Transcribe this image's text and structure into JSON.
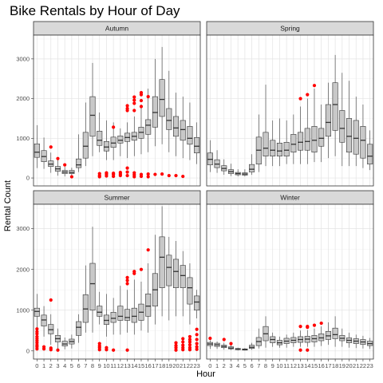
{
  "chart_data": {
    "type": "boxplot",
    "title": "Bike Rentals by Hour of Day",
    "xlabel": "Hour",
    "ylabel": "Rental Count",
    "ylim": [
      -200,
      3600
    ],
    "yticks": [
      0,
      1000,
      2000,
      3000
    ],
    "hours": [
      "0",
      "1",
      "2",
      "3",
      "4",
      "5",
      "6",
      "7",
      "8",
      "9",
      "10",
      "11",
      "12",
      "13",
      "14",
      "15",
      "16",
      "17",
      "18",
      "19",
      "20",
      "21",
      "22",
      "23"
    ],
    "outlier_color": "#ff0000",
    "box_fill": "#c8c8c8",
    "panels": [
      {
        "name": "Autumn",
        "boxes": [
          [
            250,
            520,
            650,
            860,
            1330
          ],
          [
            230,
            410,
            540,
            690,
            1020
          ],
          [
            130,
            290,
            350,
            430,
            640
          ],
          [
            60,
            170,
            230,
            290,
            450
          ],
          [
            40,
            110,
            150,
            190,
            280
          ],
          [
            60,
            110,
            140,
            190,
            260
          ],
          [
            150,
            260,
            330,
            480,
            1100
          ],
          [
            300,
            500,
            800,
            1150,
            1900
          ],
          [
            550,
            1050,
            1580,
            2050,
            2900
          ],
          [
            650,
            820,
            950,
            1180,
            1650
          ],
          [
            450,
            680,
            780,
            920,
            1450
          ],
          [
            450,
            770,
            880,
            1030,
            1400
          ],
          [
            550,
            880,
            950,
            1060,
            1250
          ],
          [
            500,
            920,
            1020,
            1130,
            1400
          ],
          [
            550,
            950,
            1050,
            1150,
            1550
          ],
          [
            600,
            1000,
            1150,
            1280,
            1850
          ],
          [
            650,
            1100,
            1330,
            1470,
            2250
          ],
          [
            800,
            1280,
            1650,
            2050,
            3000
          ],
          [
            850,
            1550,
            1980,
            2480,
            3300
          ],
          [
            650,
            1220,
            1450,
            1750,
            2700
          ],
          [
            550,
            1050,
            1260,
            1550,
            2150
          ],
          [
            500,
            950,
            1220,
            1450,
            2050
          ],
          [
            450,
            850,
            1000,
            1300,
            1900
          ],
          [
            350,
            630,
            800,
            1020,
            1400
          ]
        ],
        "outliers": [
          [
            2,
            780
          ],
          [
            3,
            490
          ],
          [
            4,
            330
          ],
          [
            5,
            30
          ],
          [
            9,
            30
          ],
          [
            9,
            60
          ],
          [
            9,
            110
          ],
          [
            10,
            50
          ],
          [
            10,
            100
          ],
          [
            10,
            130
          ],
          [
            11,
            40
          ],
          [
            11,
            90
          ],
          [
            11,
            120
          ],
          [
            11,
            1280
          ],
          [
            12,
            60
          ],
          [
            12,
            100
          ],
          [
            12,
            140
          ],
          [
            13,
            1820
          ],
          [
            13,
            1750
          ],
          [
            13,
            1700
          ],
          [
            13,
            60
          ],
          [
            13,
            150
          ],
          [
            13,
            250
          ],
          [
            14,
            1880
          ],
          [
            14,
            1960
          ],
          [
            14,
            2040
          ],
          [
            14,
            1700
          ],
          [
            14,
            30
          ],
          [
            14,
            80
          ],
          [
            14,
            130
          ],
          [
            15,
            2150
          ],
          [
            15,
            2100
          ],
          [
            15,
            1950
          ],
          [
            15,
            1800
          ],
          [
            15,
            40
          ],
          [
            15,
            90
          ],
          [
            16,
            2050
          ],
          [
            16,
            100
          ],
          [
            16,
            30
          ],
          [
            17,
            90
          ],
          [
            18,
            100
          ],
          [
            19,
            60
          ],
          [
            20,
            60
          ],
          [
            21,
            40
          ]
        ]
      },
      {
        "name": "Spring",
        "boxes": [
          [
            150,
            330,
            470,
            630,
            950
          ],
          [
            130,
            260,
            350,
            460,
            700
          ],
          [
            80,
            180,
            240,
            310,
            470
          ],
          [
            50,
            110,
            160,
            210,
            360
          ],
          [
            40,
            80,
            110,
            140,
            220
          ],
          [
            40,
            70,
            100,
            130,
            220
          ],
          [
            80,
            150,
            220,
            340,
            600
          ],
          [
            150,
            350,
            700,
            1030,
            1600
          ],
          [
            300,
            550,
            750,
            1150,
            2350
          ],
          [
            300,
            550,
            700,
            950,
            1450
          ],
          [
            300,
            550,
            680,
            880,
            1500
          ],
          [
            350,
            550,
            700,
            900,
            1450
          ],
          [
            350,
            650,
            850,
            1100,
            1600
          ],
          [
            350,
            700,
            900,
            1150,
            1800
          ],
          [
            350,
            700,
            920,
            1250,
            2000
          ],
          [
            400,
            650,
            950,
            1300,
            2250
          ],
          [
            400,
            800,
            1000,
            1250,
            1850
          ],
          [
            500,
            1050,
            1400,
            1850,
            2400
          ],
          [
            550,
            1200,
            1850,
            2400,
            3100
          ],
          [
            300,
            900,
            1250,
            1700,
            2650
          ],
          [
            300,
            650,
            1050,
            1500,
            2450
          ],
          [
            300,
            600,
            1000,
            1450,
            2050
          ],
          [
            250,
            500,
            950,
            1300,
            1850
          ],
          [
            200,
            350,
            550,
            850,
            1200
          ]
        ],
        "outliers": [
          [
            13,
            2000
          ],
          [
            14,
            2100
          ],
          [
            15,
            2330
          ]
        ]
      },
      {
        "name": "Summer",
        "boxes": [
          [
            500,
            850,
            970,
            1050,
            1400
          ],
          [
            350,
            610,
            760,
            880,
            1100
          ],
          [
            150,
            420,
            520,
            650,
            900
          ],
          [
            50,
            220,
            300,
            380,
            550
          ],
          [
            40,
            120,
            170,
            240,
            330
          ],
          [
            60,
            170,
            230,
            290,
            400
          ],
          [
            200,
            380,
            580,
            720,
            900
          ],
          [
            450,
            700,
            1030,
            1380,
            2100
          ],
          [
            450,
            1000,
            1650,
            2150,
            3050
          ],
          [
            650,
            850,
            950,
            1100,
            1450
          ],
          [
            350,
            650,
            750,
            880,
            1400
          ],
          [
            400,
            700,
            800,
            950,
            1300
          ],
          [
            400,
            750,
            850,
            1100,
            1600
          ],
          [
            450,
            750,
            820,
            1020,
            1500
          ],
          [
            400,
            700,
            850,
            1050,
            1750
          ],
          [
            500,
            750,
            950,
            1150,
            1700
          ],
          [
            450,
            850,
            1100,
            1400,
            2150
          ],
          [
            650,
            1100,
            1500,
            1900,
            2850
          ],
          [
            850,
            1550,
            2300,
            2800,
            3550
          ],
          [
            750,
            1600,
            2050,
            2350,
            2800
          ],
          [
            850,
            1550,
            1950,
            2250,
            2700
          ],
          [
            850,
            1550,
            1850,
            2100,
            2450
          ],
          [
            650,
            1150,
            1550,
            1800,
            2150
          ],
          [
            800,
            1000,
            1200,
            1350,
            1500
          ]
        ],
        "outliers": [
          [
            0,
            50
          ],
          [
            0,
            100
          ],
          [
            0,
            140
          ],
          [
            0,
            200
          ],
          [
            0,
            250
          ],
          [
            0,
            300
          ],
          [
            0,
            350
          ],
          [
            0,
            420
          ],
          [
            0,
            470
          ],
          [
            0,
            540
          ],
          [
            1,
            50
          ],
          [
            1,
            100
          ],
          [
            2,
            1250
          ],
          [
            2,
            30
          ],
          [
            2,
            70
          ],
          [
            3,
            20
          ],
          [
            9,
            30
          ],
          [
            9,
            80
          ],
          [
            9,
            120
          ],
          [
            9,
            180
          ],
          [
            10,
            30
          ],
          [
            10,
            80
          ],
          [
            11,
            20
          ],
          [
            13,
            1650
          ],
          [
            13,
            1730
          ],
          [
            13,
            1800
          ],
          [
            13,
            20
          ],
          [
            14,
            1900
          ],
          [
            14,
            1950
          ],
          [
            15,
            2000
          ],
          [
            16,
            2480
          ],
          [
            20,
            20
          ],
          [
            20,
            80
          ],
          [
            20,
            130
          ],
          [
            20,
            200
          ],
          [
            21,
            30
          ],
          [
            21,
            80
          ],
          [
            21,
            140
          ],
          [
            21,
            220
          ],
          [
            21,
            300
          ],
          [
            22,
            30
          ],
          [
            22,
            80
          ],
          [
            22,
            150
          ],
          [
            22,
            220
          ],
          [
            22,
            280
          ],
          [
            22,
            350
          ],
          [
            23,
            40
          ],
          [
            23,
            100
          ],
          [
            23,
            180
          ],
          [
            23,
            280
          ],
          [
            23,
            400
          ],
          [
            23,
            530
          ]
        ]
      },
      {
        "name": "Winter",
        "boxes": [
          [
            50,
            130,
            170,
            210,
            260
          ],
          [
            50,
            110,
            150,
            190,
            230
          ],
          [
            30,
            80,
            110,
            140,
            200
          ],
          [
            20,
            50,
            70,
            100,
            150
          ],
          [
            10,
            30,
            40,
            60,
            80
          ],
          [
            10,
            20,
            30,
            50,
            70
          ],
          [
            30,
            60,
            90,
            140,
            200
          ],
          [
            60,
            130,
            230,
            330,
            550
          ],
          [
            80,
            250,
            420,
            600,
            850
          ],
          [
            100,
            200,
            280,
            350,
            450
          ],
          [
            80,
            150,
            200,
            260,
            350
          ],
          [
            80,
            180,
            240,
            310,
            400
          ],
          [
            100,
            200,
            260,
            330,
            450
          ],
          [
            100,
            210,
            280,
            350,
            500
          ],
          [
            100,
            210,
            290,
            360,
            510
          ],
          [
            100,
            220,
            300,
            380,
            550
          ],
          [
            120,
            250,
            320,
            420,
            600
          ],
          [
            150,
            280,
            370,
            480,
            700
          ],
          [
            100,
            300,
            400,
            560,
            850
          ],
          [
            100,
            250,
            310,
            380,
            550
          ],
          [
            80,
            200,
            260,
            320,
            450
          ],
          [
            70,
            180,
            240,
            300,
            400
          ],
          [
            60,
            160,
            220,
            280,
            370
          ],
          [
            50,
            130,
            180,
            240,
            320
          ]
        ],
        "outliers": [
          [
            0,
            310
          ],
          [
            2,
            280
          ],
          [
            3,
            180
          ],
          [
            13,
            20
          ],
          [
            13,
            600
          ],
          [
            14,
            20
          ],
          [
            14,
            580
          ],
          [
            14,
            600
          ],
          [
            15,
            630
          ],
          [
            16,
            680
          ]
        ]
      }
    ]
  }
}
